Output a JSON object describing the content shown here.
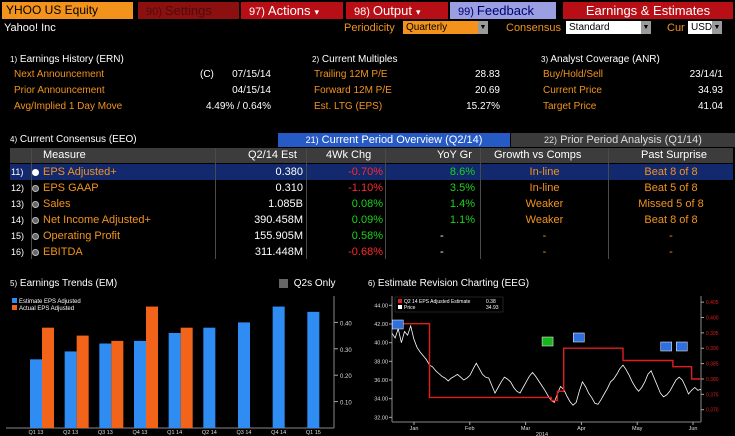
{
  "toolbar": {
    "ticker": "YHOO US Equity",
    "settings": {
      "num": "90)",
      "label": "Settings"
    },
    "actions": {
      "num": "97)",
      "label": "Actions"
    },
    "output": {
      "num": "98)",
      "label": "Output"
    },
    "feedback": {
      "num": "99)",
      "label": "Feedback"
    },
    "title": "Earnings & Estimates"
  },
  "row2": {
    "company": "Yahoo! Inc",
    "periodicity_label": "Periodicity",
    "periodicity_value": "Quarterly",
    "consensus_label": "Consensus",
    "consensus_value": "Standard",
    "cur_label": "Cur",
    "cur_value": "USD"
  },
  "earnings_history": {
    "num": "1)",
    "title": "Earnings History (ERN)",
    "rows": [
      {
        "label": "Next Announcement",
        "flag": "(C)",
        "value": "07/15/14"
      },
      {
        "label": "Prior Announcement",
        "flag": "",
        "value": "04/15/14"
      },
      {
        "label": "Avg/Implied 1 Day Move",
        "flag": "",
        "value": "4.49% / 0.64%"
      }
    ]
  },
  "current_multiples": {
    "num": "2)",
    "title": "Current Multiples",
    "rows": [
      {
        "label": "Trailing 12M P/E",
        "value": "28.83"
      },
      {
        "label": "Forward 12M P/E",
        "value": "20.69"
      },
      {
        "label": "Est. LTG (EPS)",
        "value": "15.27%"
      }
    ]
  },
  "analyst_coverage": {
    "num": "3)",
    "title": "Analyst Coverage (ANR)",
    "rows": [
      {
        "label": "Buy/Hold/Sell",
        "value": "23/14/1"
      },
      {
        "label": "Current Price",
        "value": "34.93"
      },
      {
        "label": "Target Price",
        "value": "41.04"
      }
    ]
  },
  "consensus": {
    "num": "4)",
    "title": "Current Consensus (EEO)",
    "tab_active": {
      "num": "21)",
      "label": "Current Period Overview (Q2/14)"
    },
    "tab_inactive": {
      "num": "22)",
      "label": "Prior Period Analysis (Q1/14)"
    },
    "headers": [
      "Measure",
      "Q2/14 Est",
      "4Wk Chg",
      "YoY Gr",
      "Growth vs Comps",
      "Past Surprise"
    ],
    "rows": [
      {
        "num": "11)",
        "measure": "EPS Adjusted+",
        "est": "0.380",
        "chg": "-0.70%",
        "chg_color": "red",
        "yoy": "8.6%",
        "comps": "In-line",
        "surprise": "Beat 8 of 8",
        "selected": true
      },
      {
        "num": "12)",
        "measure": "EPS GAAP",
        "est": "0.310",
        "chg": "-1.10%",
        "chg_color": "red",
        "yoy": "3.5%",
        "comps": "In-line",
        "surprise": "Beat 5 of 8",
        "selected": false
      },
      {
        "num": "13)",
        "measure": "Sales",
        "est": "1.085B",
        "chg": "0.08%",
        "chg_color": "green",
        "yoy": "1.4%",
        "comps": "Weaker",
        "surprise": "Missed 5 of 8",
        "selected": false
      },
      {
        "num": "14)",
        "measure": "Net Income Adjusted+",
        "est": "390.458M",
        "chg": "0.09%",
        "chg_color": "green",
        "yoy": "1.1%",
        "comps": "Weaker",
        "surprise": "Beat 8 of 8",
        "selected": false
      },
      {
        "num": "15)",
        "measure": "Operating Profit",
        "est": "155.905M",
        "chg": "0.58%",
        "chg_color": "green",
        "yoy": "-",
        "comps": "-",
        "surprise": "-",
        "selected": false
      },
      {
        "num": "16)",
        "measure": "EBITDA",
        "est": "311.448M",
        "chg": "-0.68%",
        "chg_color": "red",
        "yoy": "-",
        "comps": "-",
        "surprise": "-",
        "selected": false
      }
    ]
  },
  "earnings_trends": {
    "num": "5)",
    "title": "Earnings Trends (EM)",
    "checkbox_label": "Q2s Only",
    "legend": [
      "Estimate EPS Adjusted",
      "Actual EPS Adjusted"
    ],
    "colors": {
      "estimate": "#2f8cf2",
      "actual": "#f26419"
    },
    "categories": [
      "Q1 13",
      "Q2 13",
      "Q3 13",
      "Q4 13",
      "Q1 14",
      "Q2 14",
      "Q3 14",
      "Q4 14",
      "Q1 15"
    ],
    "estimate": [
      0.26,
      0.29,
      0.32,
      0.33,
      0.36,
      0.38,
      0.4,
      0.46,
      0.44
    ],
    "actual": [
      0.38,
      0.35,
      0.33,
      0.46,
      0.38,
      null,
      null,
      null,
      null
    ],
    "y_ticks": [
      "0.40",
      "0.30",
      "0.20",
      "0.10"
    ],
    "ylim": [
      0.0,
      0.5
    ]
  },
  "revision_chart": {
    "num": "6)",
    "title": "Estimate Revision Charting (EEG)",
    "legend_est_label": "Q2 14 EPS Adjusted Estimate",
    "legend_est_value": "0.38",
    "legend_price_label": "Price",
    "legend_price_value": "34.93",
    "colors": {
      "estimate": "#e01e1e",
      "price": "#ffffff"
    },
    "left_ticks": [
      "44.00",
      "42.00",
      "40.00",
      "38.00",
      "36.00",
      "34.00",
      "32.00"
    ],
    "right_ticks": [
      "0.405",
      "0.400",
      "0.395",
      "0.390",
      "0.385",
      "0.380",
      "0.375",
      "0.370"
    ],
    "months": [
      "Jan",
      "Feb",
      "Mar",
      "Apr",
      "May",
      "Jun"
    ],
    "year": "2014",
    "left_ylim": [
      31.5,
      45.0
    ],
    "right_ylim": [
      0.366,
      0.407
    ],
    "price": [
      41.0,
      40.5,
      41.5,
      40.0,
      41.2,
      40.8,
      41.8,
      40.4,
      39.5,
      39.0,
      38.6,
      38.2,
      37.6,
      37.4,
      37.0,
      36.7,
      36.4,
      36.2,
      35.9,
      36.2,
      36.4,
      36.6,
      36.3,
      36.0,
      36.2,
      36.5,
      37.2,
      37.8,
      37.2,
      36.6,
      36.3,
      36.2,
      35.4,
      34.6,
      35.2,
      35.8,
      36.3,
      36.1,
      35.8,
      35.2,
      34.8,
      34.6,
      35.2,
      35.8,
      36.4,
      36.8,
      36.4,
      35.9,
      35.4,
      34.9,
      34.3,
      33.8,
      33.6,
      34.5,
      35.3,
      35.0,
      34.3,
      33.7,
      33.3,
      33.6,
      34.8,
      35.8,
      35.3,
      34.6,
      34.1,
      33.5,
      33.4,
      33.9,
      34.5,
      35.1,
      35.8,
      36.1,
      36.6,
      37.2,
      37.6,
      37.1,
      36.5,
      35.8,
      35.2,
      34.8,
      35.2,
      35.8,
      36.6,
      37.0,
      36.2,
      35.4,
      34.6,
      34.2,
      34.4,
      34.8,
      35.4,
      36.0,
      36.3,
      36.0,
      35.3,
      34.5,
      34.9,
      35.2,
      34.9,
      35.0
    ],
    "estimate_steps": [
      [
        0,
        0.398
      ],
      [
        10,
        0.398
      ],
      [
        12,
        0.374
      ],
      [
        47,
        0.374
      ],
      [
        51,
        0.373
      ],
      [
        53,
        0.376
      ],
      [
        55,
        0.39
      ],
      [
        72,
        0.39
      ],
      [
        74,
        0.386
      ],
      [
        89,
        0.386
      ],
      [
        90,
        0.384
      ],
      [
        95,
        0.384
      ],
      [
        96,
        0.38
      ],
      [
        99,
        0.38
      ]
    ],
    "markers": [
      {
        "x": 2,
        "color": "#2f6fe0"
      },
      {
        "x": 50,
        "color": "#19b41e"
      },
      {
        "x": 60,
        "color": "#2f6fe0"
      },
      {
        "x": 88,
        "color": "#2f6fe0"
      },
      {
        "x": 93,
        "color": "#2f6fe0"
      }
    ]
  }
}
